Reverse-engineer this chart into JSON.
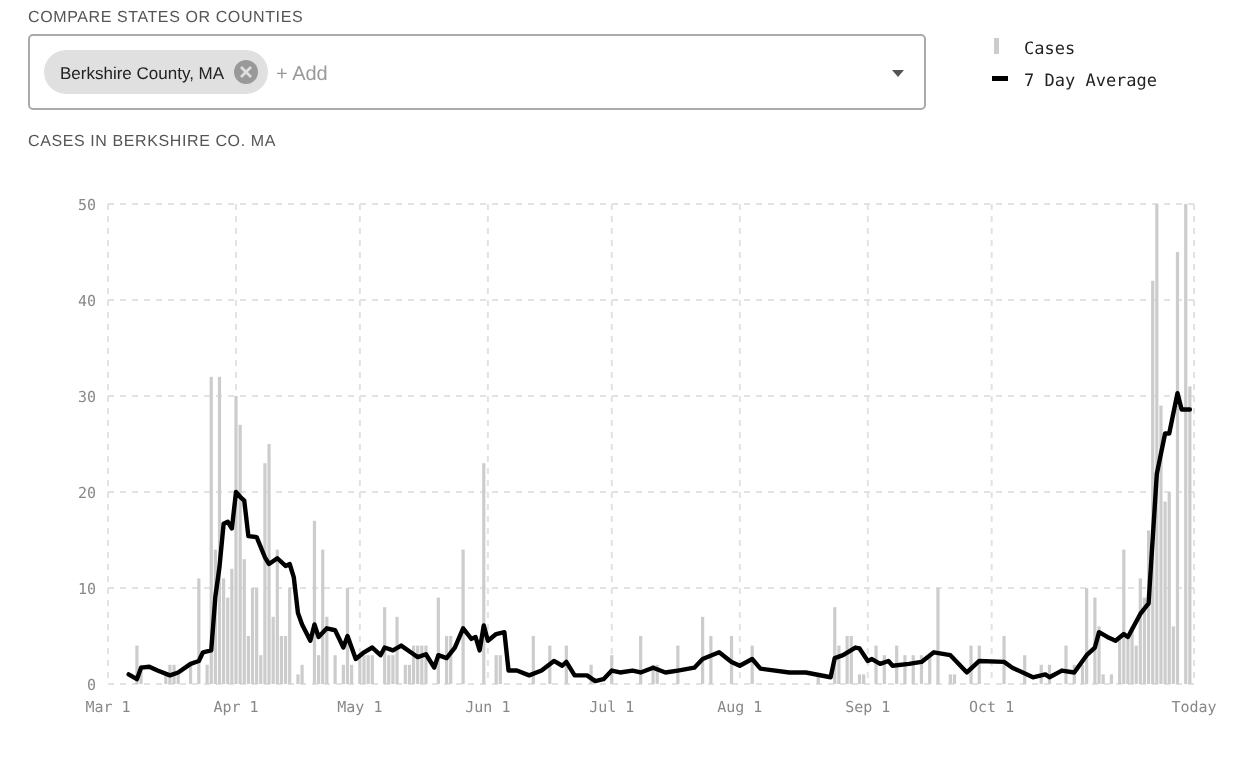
{
  "chart_data": {
    "type": "bar",
    "title": "CASES IN BERKSHIRE CO. MA",
    "annotations": [
      "COMPARE STATES OR COUNTIES",
      "Berkshire County, MA",
      "+ Add"
    ],
    "xlim": [
      "--03-01",
      "--11-19"
    ],
    "xticks": [
      {
        "value": "--03-01",
        "label": "Mar 1"
      },
      {
        "value": "--04-01",
        "label": "Apr 1"
      },
      {
        "value": "--05-01",
        "label": "May 1"
      },
      {
        "value": "--06-01",
        "label": "Jun 1"
      },
      {
        "value": "--07-01",
        "label": "Jul 1"
      },
      {
        "value": "--08-01",
        "label": "Aug 1"
      },
      {
        "value": "--09-01",
        "label": "Sep 1"
      },
      {
        "value": "--10-01",
        "label": "Oct 1"
      },
      {
        "value": "--11-19",
        "label": "Today"
      }
    ],
    "ylim": [
      0,
      50
    ],
    "yticks": [
      0,
      10,
      20,
      30,
      40,
      50
    ],
    "grid": true,
    "legend": "top right",
    "series": [
      {
        "name": "Cases",
        "color": "#cccccc",
        "x": [
          "--03-08",
          "--03-09",
          "--03-15",
          "--03-16",
          "--03-17",
          "--03-18",
          "--03-21",
          "--03-23",
          "--03-25",
          "--03-26",
          "--03-27",
          "--03-28",
          "--03-29",
          "--03-30",
          "--03-31",
          "--04-01",
          "--04-02",
          "--04-03",
          "--04-04",
          "--04-05",
          "--04-06",
          "--04-07",
          "--04-08",
          "--04-09",
          "--04-10",
          "--04-11",
          "--04-12",
          "--04-13",
          "--04-14",
          "--04-16",
          "--04-17",
          "--04-20",
          "--04-21",
          "--04-22",
          "--04-23",
          "--04-25",
          "--04-27",
          "--04-28",
          "--04-29",
          "--05-01",
          "--05-02",
          "--05-03",
          "--05-04",
          "--05-07",
          "--05-08",
          "--05-09",
          "--05-10",
          "--05-12",
          "--05-13",
          "--05-14",
          "--05-15",
          "--05-16",
          "--05-17",
          "--05-20",
          "--05-22",
          "--05-23",
          "--05-26",
          "--05-31",
          "--06-03",
          "--06-04",
          "--06-12",
          "--06-16",
          "--06-20",
          "--06-26",
          "--07-01",
          "--07-08",
          "--07-11",
          "--07-12",
          "--07-17",
          "--07-23",
          "--07-25",
          "--07-30",
          "--08-04",
          "--08-20",
          "--08-24",
          "--08-25",
          "--08-27",
          "--08-28",
          "--08-30",
          "--08-31",
          "--09-03",
          "--09-05",
          "--09-08",
          "--09-10",
          "--09-12",
          "--09-14",
          "--09-16",
          "--09-18",
          "--09-21",
          "--09-22",
          "--09-26",
          "--09-28",
          "--10-04",
          "--10-09",
          "--10-13",
          "--10-15",
          "--10-19",
          "--10-21",
          "--10-23",
          "--10-24",
          "--10-26",
          "--10-27",
          "--10-28",
          "--10-30",
          "--11-01",
          "--11-02",
          "--11-03",
          "--11-04",
          "--11-05",
          "--11-06",
          "--11-07",
          "--11-08",
          "--11-09",
          "--11-10",
          "--11-11",
          "--11-12",
          "--11-13",
          "--11-14",
          "--11-15",
          "--11-17",
          "--11-18"
        ],
        "values": [
          4,
          2,
          1,
          2,
          2,
          1,
          2,
          11,
          2,
          32,
          14,
          32,
          11,
          9,
          12,
          30,
          27,
          13,
          5,
          10,
          10,
          3,
          23,
          25,
          7,
          14,
          5,
          5,
          10,
          1,
          2,
          17,
          3,
          14,
          7,
          3,
          2,
          10,
          2,
          3,
          3,
          3,
          3,
          8,
          3,
          3,
          7,
          2,
          2,
          4,
          4,
          4,
          4,
          9,
          5,
          5,
          14,
          23,
          3,
          3,
          5,
          4,
          4,
          2,
          3,
          5,
          2,
          2,
          4,
          7,
          5,
          5,
          4,
          1,
          8,
          4,
          5,
          5,
          1,
          1,
          4,
          3,
          4,
          3,
          3,
          3,
          3,
          10,
          1,
          1,
          4,
          4,
          5,
          3,
          2,
          2,
          4,
          2,
          2,
          10,
          9,
          6,
          1,
          1,
          5,
          14,
          5,
          6,
          4,
          11,
          9,
          16,
          42,
          50,
          29,
          19,
          20,
          6,
          45,
          50,
          31
        ]
      },
      {
        "name": "7 Day Average",
        "type": "line",
        "color": "#000000",
        "x": [
          "--03-06",
          "--03-08",
          "--03-09",
          "--03-11",
          "--03-13",
          "--03-16",
          "--03-18",
          "--03-21",
          "--03-23",
          "--03-24",
          "--03-26",
          "--03-27",
          "--03-28",
          "--03-29",
          "--03-30",
          "--03-31",
          "--04-01",
          "--04-02",
          "--04-03",
          "--04-04",
          "--04-06",
          "--04-08",
          "--04-09",
          "--04-11",
          "--04-13",
          "--04-14",
          "--04-15",
          "--04-16",
          "--04-17",
          "--04-19",
          "--04-20",
          "--04-21",
          "--04-23",
          "--04-25",
          "--04-27",
          "--04-28",
          "--04-30",
          "--05-02",
          "--05-04",
          "--05-06",
          "--05-07",
          "--05-09",
          "--05-11",
          "--05-14",
          "--05-15",
          "--05-17",
          "--05-19",
          "--05-20",
          "--05-22",
          "--05-24",
          "--05-26",
          "--05-28",
          "--05-29",
          "--05-30",
          "--05-31",
          "--06-01",
          "--06-03",
          "--06-05",
          "--06-06",
          "--06-08",
          "--06-11",
          "--06-14",
          "--06-17",
          "--06-19",
          "--06-20",
          "--06-22",
          "--06-25",
          "--06-27",
          "--06-29",
          "--07-01",
          "--07-03",
          "--07-06",
          "--07-08",
          "--07-11",
          "--07-14",
          "--07-17",
          "--07-21",
          "--07-23",
          "--07-27",
          "--07-30",
          "--08-01",
          "--08-04",
          "--08-06",
          "--08-13",
          "--08-17",
          "--08-23",
          "--08-24",
          "--08-26",
          "--08-29",
          "--08-30",
          "--09-01",
          "--09-02",
          "--09-04",
          "--09-06",
          "--09-07",
          "--09-11",
          "--09-14",
          "--09-17",
          "--09-21",
          "--09-25",
          "--09-28",
          "--10-04",
          "--10-06",
          "--10-11",
          "--10-14",
          "--10-15",
          "--10-18",
          "--10-21",
          "--10-24",
          "--10-26",
          "--10-27",
          "--10-29",
          "--10-31",
          "--11-02",
          "--11-03",
          "--11-06",
          "--11-08",
          "--11-10",
          "--11-12",
          "--11-13",
          "--11-15",
          "--11-16",
          "--11-18"
        ],
        "values": [
          1.0,
          0.5,
          1.7,
          1.8,
          1.4,
          0.9,
          1.2,
          2.1,
          2.4,
          3.3,
          3.5,
          9.1,
          12.2,
          16.7,
          16.9,
          16.2,
          20,
          19.5,
          19.1,
          15.4,
          15.3,
          13.2,
          12.5,
          13.1,
          12.3,
          12.5,
          11.1,
          7.4,
          6.2,
          4.5,
          6.2,
          4.9,
          5.8,
          5.6,
          3.8,
          5.0,
          2.6,
          3.3,
          3.8,
          3.0,
          3.8,
          3.5,
          4.0,
          3.1,
          2.8,
          3.1,
          1.7,
          3.0,
          2.7,
          3.8,
          5.8,
          4.7,
          4.9,
          3.5,
          6.1,
          4.5,
          5.2,
          5.4,
          1.4,
          1.4,
          0.9,
          1.4,
          2.4,
          1.9,
          2.3,
          0.9,
          0.9,
          0.3,
          0.5,
          1.4,
          1.2,
          1.4,
          1.2,
          1.7,
          1.2,
          1.4,
          1.7,
          2.6,
          3.3,
          2.3,
          1.9,
          2.6,
          1.6,
          1.2,
          1.2,
          0.7,
          2.7,
          3.0,
          3.8,
          3.7,
          2.4,
          2.6,
          2.1,
          2.4,
          1.9,
          2.1,
          2.3,
          3.3,
          3.0,
          1.2,
          2.4,
          2.3,
          1.7,
          0.7,
          1.0,
          0.7,
          1.4,
          1.2,
          3.0,
          3.8,
          5.4,
          4.9,
          4.5,
          5.2,
          4.9,
          7.3,
          8.4,
          21.9,
          26.1,
          26.1,
          30.3,
          28.6,
          28.6
        ]
      }
    ]
  }
}
